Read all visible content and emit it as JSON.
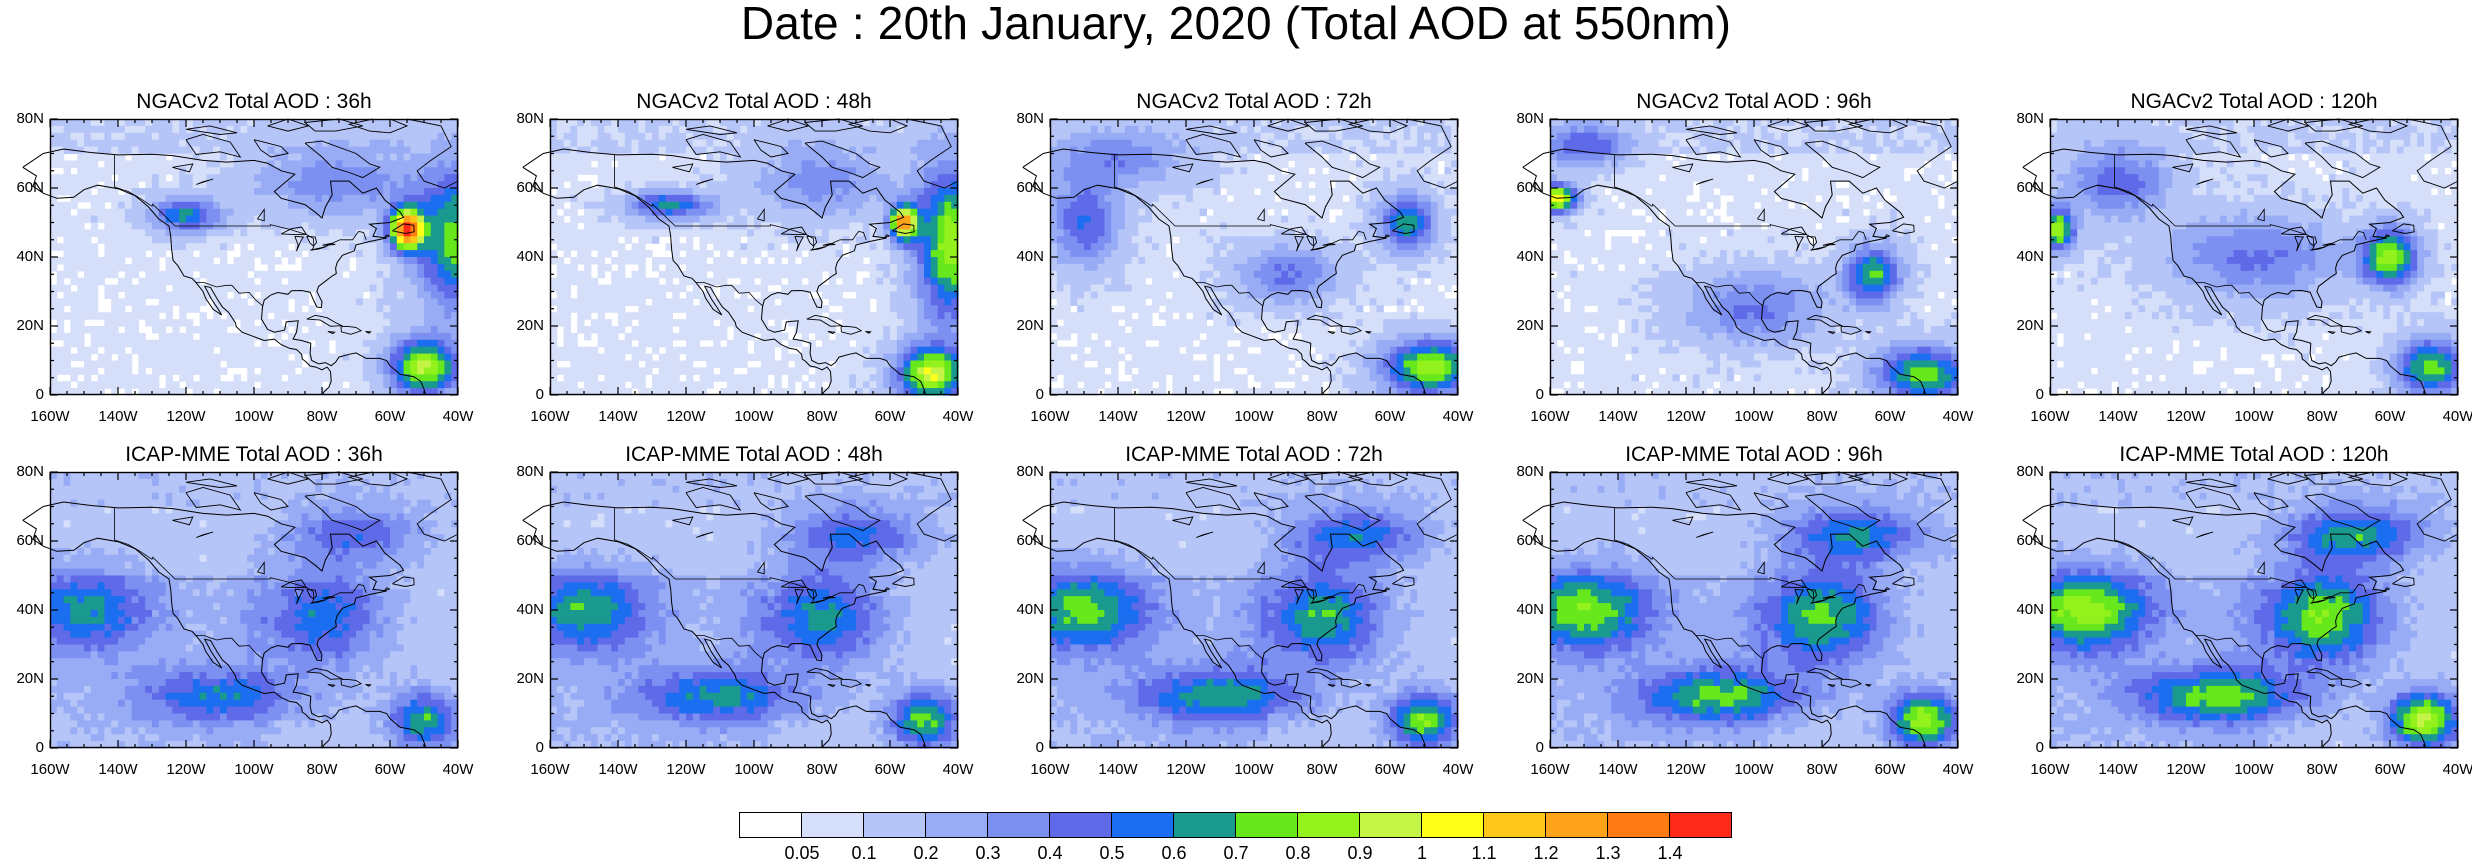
{
  "title": "Date : 20th January, 2020 (Total AOD at 550nm)",
  "panel_rows": [
    {
      "model": "NGACv2",
      "titles": [
        "NGACv2 Total AOD : 36h",
        "NGACv2 Total AOD : 48h",
        "NGACv2 Total AOD : 72h",
        "NGACv2 Total AOD : 96h",
        "NGACv2 Total AOD : 120h"
      ]
    },
    {
      "model": "ICAP-MME",
      "titles": [
        "ICAP-MME Total AOD : 36h",
        "ICAP-MME Total AOD : 48h",
        "ICAP-MME Total AOD : 72h",
        "ICAP-MME Total AOD : 96h",
        "ICAP-MME Total AOD : 120h"
      ]
    }
  ],
  "lat_labels": [
    "80N",
    "60N",
    "40N",
    "20N",
    "0"
  ],
  "lon_labels": [
    "160W",
    "140W",
    "120W",
    "100W",
    "80W",
    "60W",
    "40W"
  ],
  "colorbar": {
    "labels": [
      "0.05",
      "0.1",
      "0.2",
      "0.3",
      "0.4",
      "0.5",
      "0.6",
      "0.7",
      "0.8",
      "0.9",
      "1",
      "1.1",
      "1.2",
      "1.3",
      "1.4"
    ],
    "colors": [
      "#ffffff",
      "#d6dffa",
      "#b6c5f8",
      "#98acf6",
      "#7c90f2",
      "#5f6ae8",
      "#1c6ef0",
      "#1a9a8e",
      "#66e81c",
      "#94f21c",
      "#c4f445",
      "#ffff1a",
      "#ffc61a",
      "#ffa31a",
      "#ff7a12",
      "#ff2a1a"
    ]
  }
}
